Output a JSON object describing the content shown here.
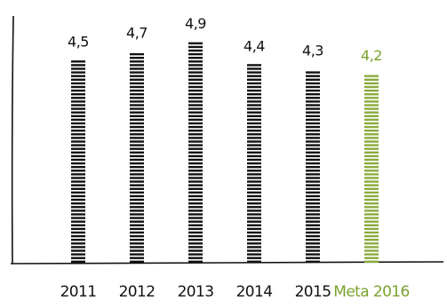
{
  "chart_data": {
    "type": "bar",
    "title": "",
    "xlabel": "",
    "ylabel": "",
    "categories": [
      "2011",
      "2012",
      "2013",
      "2014",
      "2015",
      "Meta 2016"
    ],
    "values": [
      4.5,
      4.7,
      4.9,
      4.4,
      4.3,
      4.2
    ],
    "value_labels": [
      "4,5",
      "4,7",
      "4,9",
      "4,4",
      "4,3",
      "4,2"
    ],
    "ylim": [
      0,
      5.0
    ],
    "grid": false,
    "bar_style": "dashed-stripes",
    "colors": {
      "bar": "#111111",
      "highlight_bar": "#8aab3c",
      "text": "#111111",
      "highlight_text": "#7aa32e",
      "axis": "#111111"
    },
    "highlight_index": 5
  }
}
